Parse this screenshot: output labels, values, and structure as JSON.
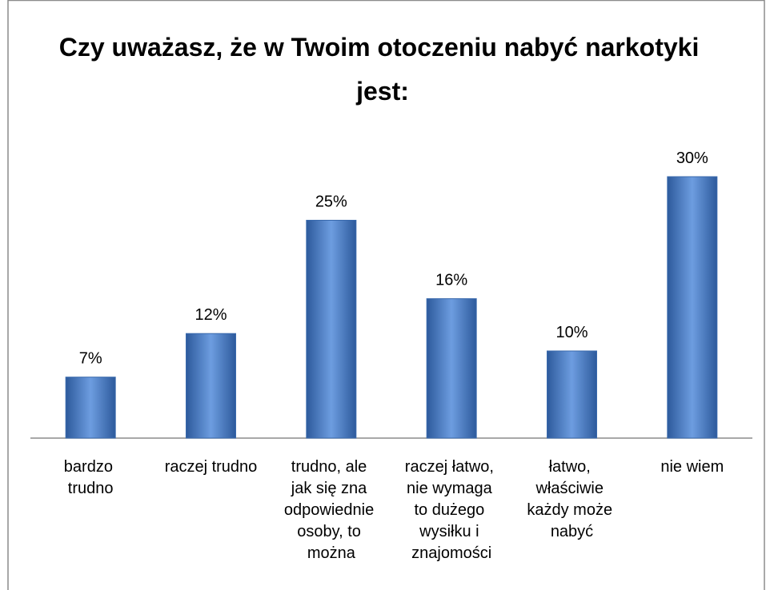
{
  "chart_data": {
    "type": "bar",
    "title": "Czy uważasz, że w Twoim otoczeniu nabyć narkotyki jest:",
    "categories": [
      "bardzo trudno",
      "raczej trudno",
      "trudno, ale jak się zna odpowiednie osoby, to można",
      "raczej łatwo, nie wymaga to dużego wysiłku i znajomości",
      "łatwo, właściwie każdy może nabyć",
      "nie wiem"
    ],
    "values": [
      7,
      12,
      25,
      16,
      10,
      30
    ],
    "value_labels": [
      "7%",
      "12%",
      "25%",
      "16%",
      "10%",
      "30%"
    ],
    "color": "#4a7ebb"
  }
}
